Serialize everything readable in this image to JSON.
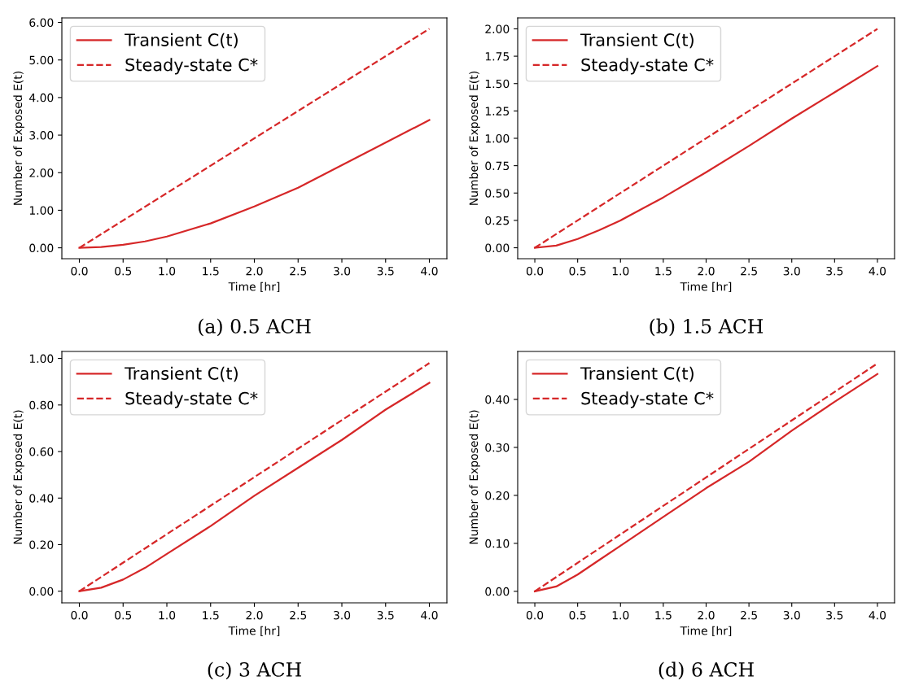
{
  "chart_data": [
    {
      "type": "line",
      "title": "(a) 0.5 ACH",
      "xlabel": "Time [hr]",
      "ylabel": "Number of Exposed E(t)",
      "legend": "top left",
      "grid": false,
      "xlim": [
        -0.2,
        4.2
      ],
      "xticks": [
        {
          "value": 0,
          "label": "0.0"
        },
        {
          "value": 0.5,
          "label": "0.5"
        },
        {
          "value": 1,
          "label": "1.0"
        },
        {
          "value": 1.5,
          "label": "1.5"
        },
        {
          "value": 2,
          "label": "2.0"
        },
        {
          "value": 2.5,
          "label": "2.5"
        },
        {
          "value": 3,
          "label": "3.0"
        },
        {
          "value": 3.5,
          "label": "3.5"
        },
        {
          "value": 4,
          "label": "4.0"
        }
      ],
      "ylim": [
        -0.29,
        6.12
      ],
      "yticks": [
        {
          "value": 0,
          "label": "0.00"
        },
        {
          "value": 1,
          "label": "1.00"
        },
        {
          "value": 2,
          "label": "2.00"
        },
        {
          "value": 3,
          "label": "3.00"
        },
        {
          "value": 4,
          "label": "4.00"
        },
        {
          "value": 5,
          "label": "5.00"
        },
        {
          "value": 6,
          "label": "6.00"
        }
      ],
      "series": [
        {
          "name": "Transient C(t)",
          "color": "#d62728",
          "line_style": "solid",
          "x": [
            0,
            0.25,
            0.5,
            0.75,
            1,
            1.5,
            2,
            2.5,
            3,
            3.5,
            4
          ],
          "values": [
            0,
            0.02,
            0.08,
            0.17,
            0.3,
            0.65,
            1.1,
            1.6,
            2.2,
            2.8,
            3.4
          ]
        },
        {
          "name": "Steady-state C*",
          "color": "#d62728",
          "line_style": "dashed",
          "x": [
            0,
            4
          ],
          "values": [
            0,
            5.83
          ]
        }
      ]
    },
    {
      "type": "line",
      "title": "(b) 1.5 ACH",
      "xlabel": "Time [hr]",
      "ylabel": "Number of Exposed E(t)",
      "legend": "top left",
      "grid": false,
      "xlim": [
        -0.2,
        4.2
      ],
      "xticks": [
        {
          "value": 0,
          "label": "0.0"
        },
        {
          "value": 0.5,
          "label": "0.5"
        },
        {
          "value": 1,
          "label": "1.0"
        },
        {
          "value": 1.5,
          "label": "1.5"
        },
        {
          "value": 2,
          "label": "2.0"
        },
        {
          "value": 2.5,
          "label": "2.5"
        },
        {
          "value": 3,
          "label": "3.0"
        },
        {
          "value": 3.5,
          "label": "3.5"
        },
        {
          "value": 4,
          "label": "4.0"
        }
      ],
      "ylim": [
        -0.1,
        2.1
      ],
      "yticks": [
        {
          "value": 0,
          "label": "0.00"
        },
        {
          "value": 0.25,
          "label": "0.25"
        },
        {
          "value": 0.5,
          "label": "0.50"
        },
        {
          "value": 0.75,
          "label": "0.75"
        },
        {
          "value": 1,
          "label": "1.00"
        },
        {
          "value": 1.25,
          "label": "1.25"
        },
        {
          "value": 1.5,
          "label": "1.50"
        },
        {
          "value": 1.75,
          "label": "1.75"
        },
        {
          "value": 2,
          "label": "2.00"
        }
      ],
      "series": [
        {
          "name": "Transient C(t)",
          "color": "#d62728",
          "line_style": "solid",
          "x": [
            0,
            0.25,
            0.5,
            0.75,
            1,
            1.5,
            2,
            2.5,
            3,
            3.5,
            4
          ],
          "values": [
            0,
            0.02,
            0.08,
            0.16,
            0.25,
            0.46,
            0.69,
            0.93,
            1.18,
            1.42,
            1.66
          ]
        },
        {
          "name": "Steady-state C*",
          "color": "#d62728",
          "line_style": "dashed",
          "x": [
            0,
            4
          ],
          "values": [
            0,
            2.0
          ]
        }
      ]
    },
    {
      "type": "line",
      "title": "(c) 3 ACH",
      "xlabel": "Time [hr]",
      "ylabel": "Number of Exposed E(t)",
      "legend": "top left",
      "grid": false,
      "xlim": [
        -0.2,
        4.2
      ],
      "xticks": [
        {
          "value": 0,
          "label": "0.0"
        },
        {
          "value": 0.5,
          "label": "0.5"
        },
        {
          "value": 1,
          "label": "1.0"
        },
        {
          "value": 1.5,
          "label": "1.5"
        },
        {
          "value": 2,
          "label": "2.0"
        },
        {
          "value": 2.5,
          "label": "2.5"
        },
        {
          "value": 3,
          "label": "3.0"
        },
        {
          "value": 3.5,
          "label": "3.5"
        },
        {
          "value": 4,
          "label": "4.0"
        }
      ],
      "ylim": [
        -0.05,
        1.03
      ],
      "yticks": [
        {
          "value": 0,
          "label": "0.00"
        },
        {
          "value": 0.2,
          "label": "0.20"
        },
        {
          "value": 0.4,
          "label": "0.40"
        },
        {
          "value": 0.6,
          "label": "0.60"
        },
        {
          "value": 0.8,
          "label": "0.80"
        },
        {
          "value": 1,
          "label": "1.00"
        }
      ],
      "series": [
        {
          "name": "Transient C(t)",
          "color": "#d62728",
          "line_style": "solid",
          "x": [
            0,
            0.25,
            0.5,
            0.75,
            1,
            1.5,
            2,
            2.5,
            3,
            3.5,
            4
          ],
          "values": [
            0,
            0.015,
            0.05,
            0.1,
            0.16,
            0.28,
            0.41,
            0.53,
            0.65,
            0.78,
            0.895
          ]
        },
        {
          "name": "Steady-state C*",
          "color": "#d62728",
          "line_style": "dashed",
          "x": [
            0,
            4
          ],
          "values": [
            0,
            0.98
          ]
        }
      ]
    },
    {
      "type": "line",
      "title": "(d) 6 ACH",
      "xlabel": "Time [hr]",
      "ylabel": "Number of Exposed E(t)",
      "legend": "top left",
      "grid": false,
      "xlim": [
        -0.2,
        4.2
      ],
      "xticks": [
        {
          "value": 0,
          "label": "0.0"
        },
        {
          "value": 0.5,
          "label": "0.5"
        },
        {
          "value": 1,
          "label": "1.0"
        },
        {
          "value": 1.5,
          "label": "1.5"
        },
        {
          "value": 2,
          "label": "2.0"
        },
        {
          "value": 2.5,
          "label": "2.5"
        },
        {
          "value": 3,
          "label": "3.0"
        },
        {
          "value": 3.5,
          "label": "3.5"
        },
        {
          "value": 4,
          "label": "4.0"
        }
      ],
      "ylim": [
        -0.024,
        0.5
      ],
      "yticks": [
        {
          "value": 0,
          "label": "0.00"
        },
        {
          "value": 0.1,
          "label": "0.10"
        },
        {
          "value": 0.2,
          "label": "0.20"
        },
        {
          "value": 0.3,
          "label": "0.30"
        },
        {
          "value": 0.4,
          "label": "0.40"
        }
      ],
      "series": [
        {
          "name": "Transient C(t)",
          "color": "#d62728",
          "line_style": "solid",
          "x": [
            0,
            0.25,
            0.5,
            0.75,
            1,
            1.5,
            2,
            2.5,
            3,
            3.5,
            4
          ],
          "values": [
            0,
            0.01,
            0.035,
            0.065,
            0.095,
            0.155,
            0.215,
            0.27,
            0.335,
            0.395,
            0.453
          ]
        },
        {
          "name": "Steady-state C*",
          "color": "#d62728",
          "line_style": "dashed",
          "x": [
            0,
            4
          ],
          "values": [
            0,
            0.475
          ]
        }
      ]
    }
  ]
}
